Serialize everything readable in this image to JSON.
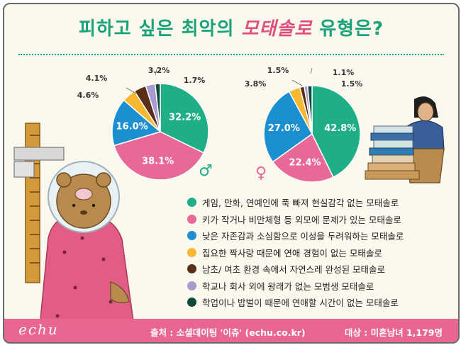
{
  "title_before": "피하고 싶은 최악의 ",
  "title_highlight": "모태솔로",
  "title_after": " 유형은?",
  "chart_data": [
    {
      "type": "pie",
      "gender": "male",
      "symbol": "♂",
      "values": [
        32.2,
        38.1,
        16.0,
        4.6,
        4.1,
        3.2,
        1.7
      ],
      "labels": [
        "32.2%",
        "38.1%",
        "16.0%",
        "4.6%",
        "4.1%",
        "3.2%",
        "1.7%"
      ]
    },
    {
      "type": "pie",
      "gender": "female",
      "symbol": "♀",
      "values": [
        42.8,
        22.4,
        27.0,
        3.8,
        1.5,
        1.1,
        1.5
      ],
      "labels": [
        "42.8%",
        "22.4%",
        "27.0%",
        "3.8%",
        "1.5%",
        "1.1%",
        "1.5%"
      ]
    }
  ],
  "colors": [
    "#1fae86",
    "#e8689a",
    "#1c8fd1",
    "#f7b731",
    "#5a2e17",
    "#a99ad2",
    "#0d4a3b"
  ],
  "legend": [
    "게임, 만화, 연예인에 푹 빠져 현실감각 없는 모태솔로",
    "키가 작거나 비만체형 등 외모에 문제가 있는 모태솔로",
    "낮은 자존감과 소심함으로 이성을 두려워하는 모태솔로",
    "집요한 짝사랑 때문에 연애 경험이 없는 모태솔로",
    "남초/ 여초 환경 속에서 자연스레 완성된 모태솔로",
    "학교나 회사 외에 왕래가 없는 모범생 모태솔로",
    "학업이나 밥벌이 때문에 연애할 시간이 없는 모태솔로"
  ],
  "footer": {
    "brand": "echu",
    "source": "출처 : 소셜데이팅 '이츄' (echu.co.kr)",
    "target": "대상 : 미혼남녀 1,179명"
  }
}
